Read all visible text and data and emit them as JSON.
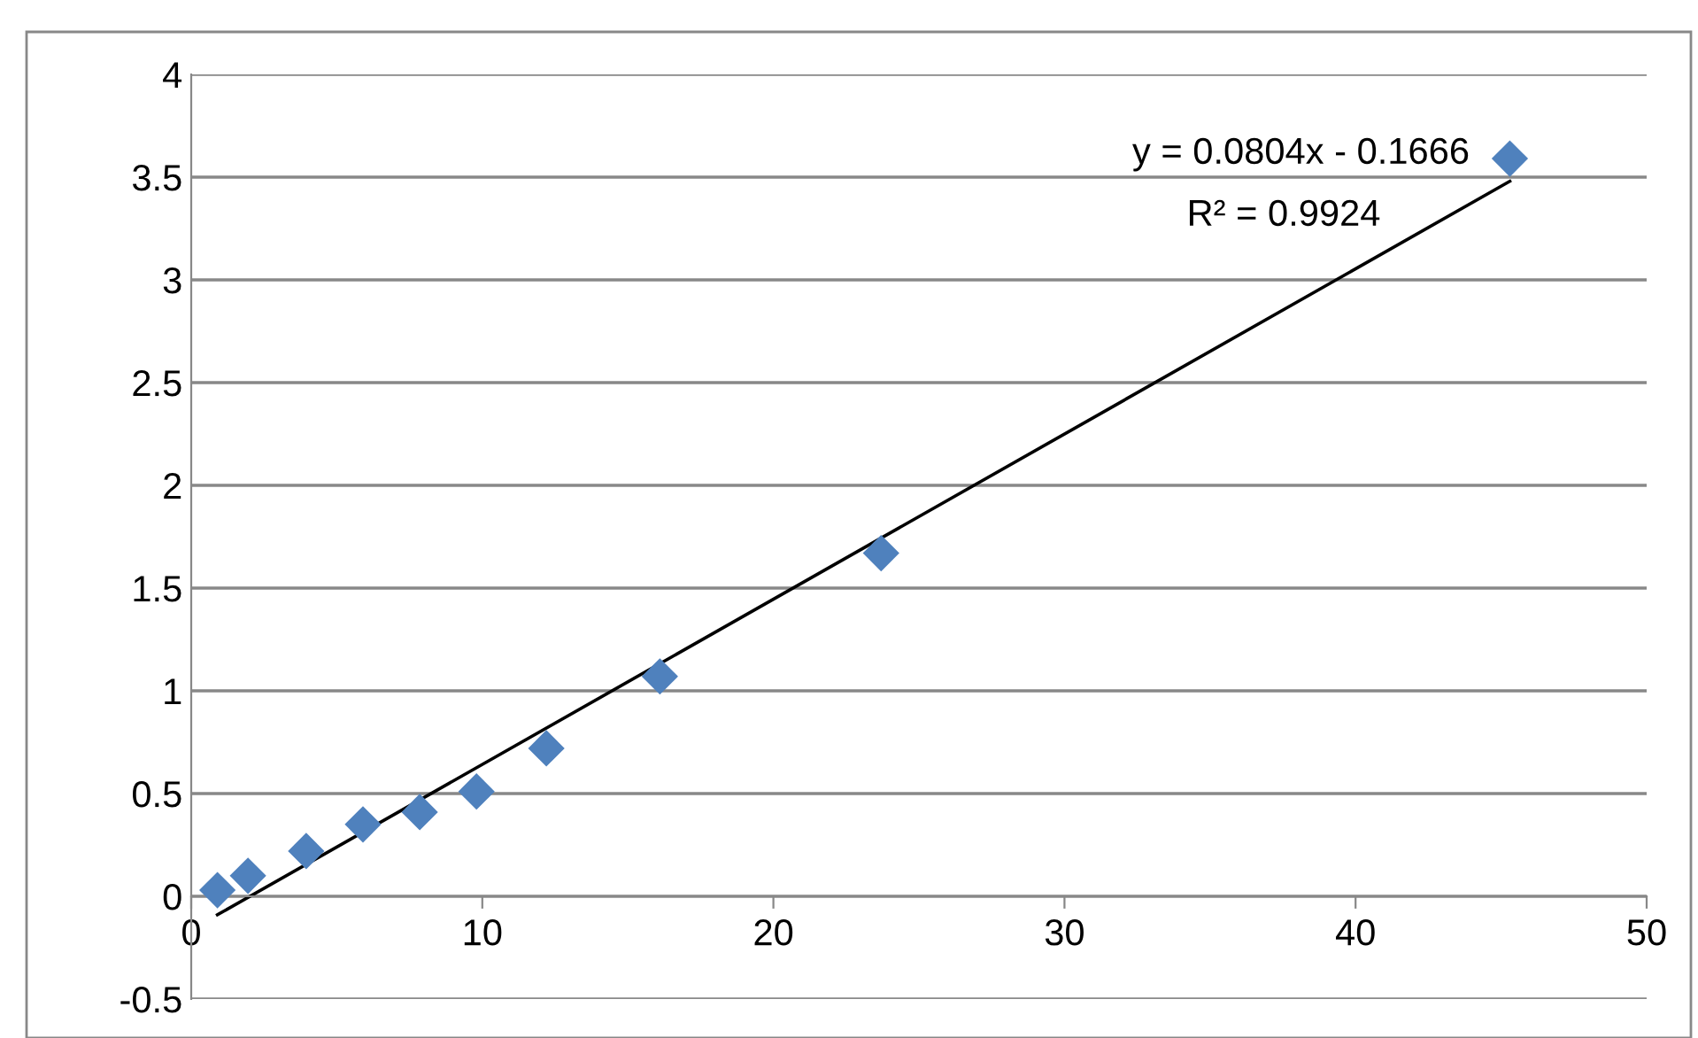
{
  "chart_data": {
    "type": "scatter",
    "xlim": [
      0,
      50
    ],
    "xticks": [
      0,
      10,
      20,
      30,
      40,
      50
    ],
    "ylim": [
      -0.5,
      4
    ],
    "yticks": [
      -0.5,
      0,
      0.5,
      1,
      1.5,
      2,
      2.5,
      3,
      3.5,
      4
    ],
    "grid": "y",
    "marker": "diamond",
    "series": [
      {
        "color": "#4f81bd",
        "x": [
          0.9,
          1.95,
          3.95,
          5.9,
          7.85,
          9.8,
          12.2,
          16.1,
          23.7,
          45.3
        ],
        "values": [
          0.03,
          0.1,
          0.22,
          0.35,
          0.41,
          0.51,
          0.72,
          1.07,
          1.67,
          3.59
        ]
      },
      {
        "type": "line",
        "color": "#000000",
        "marker": "none",
        "x": [
          0.9,
          45.3
        ],
        "values": [
          -0.09,
          3.48
        ]
      }
    ],
    "annotations": [
      "y = 0.0804x - 0.1666",
      "R² = 0.9924"
    ]
  }
}
